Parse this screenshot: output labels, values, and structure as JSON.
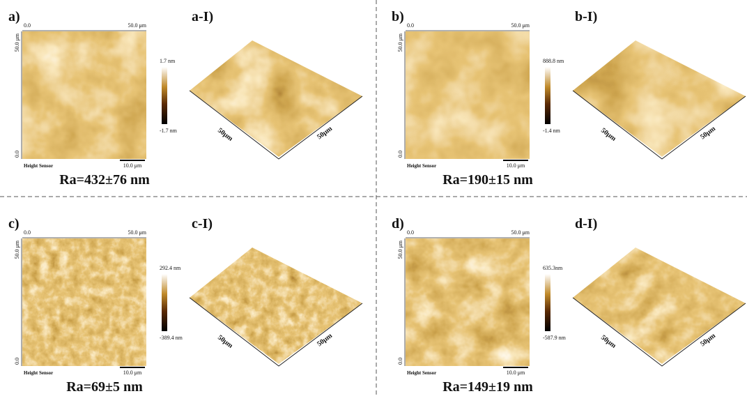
{
  "panels": [
    {
      "label": "a)",
      "view3d_label": "a-I)",
      "x_start": "0.0",
      "x_end": "50.0 μm",
      "y_end": "50.0 μm",
      "y_start": "0.0",
      "scale_max": "1.7 nm",
      "scale_min": "-1.7 nm",
      "sensor": "Height Sensor",
      "scale_bar": "10.0 μm",
      "roughness": "Ra=432±76 nm",
      "axis_x": "50μm",
      "axis_y": "50μm"
    },
    {
      "label": "b)",
      "view3d_label": "b-I)",
      "x_start": "0.0",
      "x_end": "50.0 μm",
      "y_end": "50.0 μm",
      "y_start": "0.0",
      "scale_max": "888.8 nm",
      "scale_min": "-1.4 nm",
      "sensor": "Height Sensor",
      "scale_bar": "10.0 μm",
      "roughness": "Ra=190±15 nm",
      "axis_x": "50μm",
      "axis_y": "50μm"
    },
    {
      "label": "c)",
      "view3d_label": "c-I)",
      "x_start": "0.0",
      "x_end": "50.0 μm",
      "y_end": "50.0 μm",
      "y_start": "0.0",
      "scale_max": "292.4 nm",
      "scale_min": "-389.4 nm",
      "sensor": "Height Sensor",
      "scale_bar": "10.0 μm",
      "roughness": "Ra=69±5 nm",
      "axis_x": "50μm",
      "axis_y": "50μm"
    },
    {
      "label": "d)",
      "view3d_label": "d-I)",
      "x_start": "0.0",
      "x_end": "50.0 μm",
      "y_end": "50.0 μm",
      "y_start": "0.0",
      "scale_max": "635.3nm",
      "scale_min": "-587.9 nm",
      "sensor": "Height Sensor",
      "scale_bar": "10.0 μm",
      "roughness": "Ra=149±19 nm",
      "axis_x": "50μm",
      "axis_y": "50μm"
    }
  ]
}
